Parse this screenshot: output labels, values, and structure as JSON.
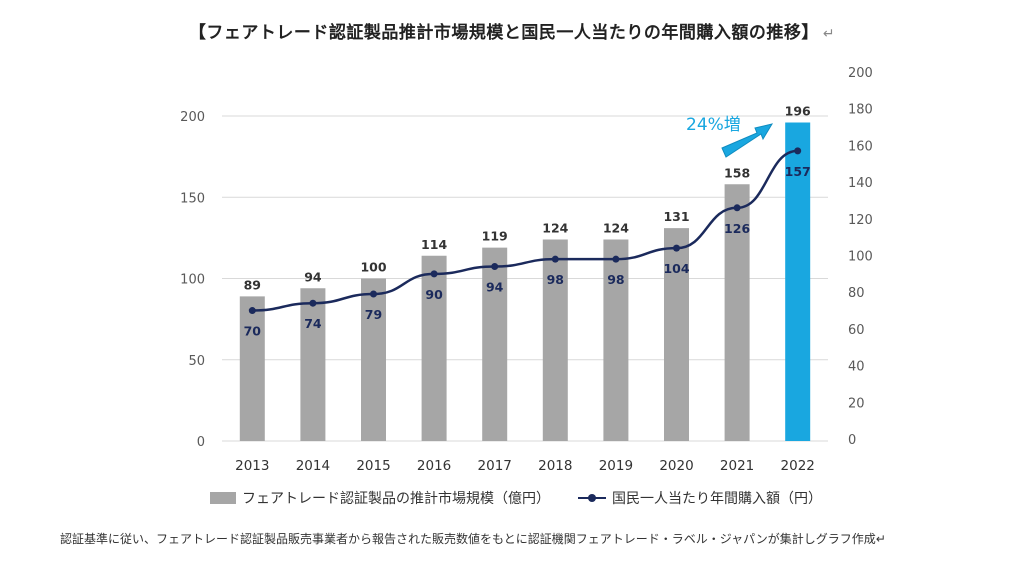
{
  "title": "【フェアトレード認証製品推計市場規模と国民一人当たりの年間購入額の推移】",
  "title_mark": "↵",
  "footnote": "認証基準に従い、フェアトレード認証製品販売事業者から報告された販売数値をもとに認証機関フェアトレード・ラベル・ジャパンが集計しグラフ作成↵",
  "annotation": {
    "text": "24%増",
    "color": "#19a7e0"
  },
  "legend": {
    "bars": "フェアトレード認証製品の推計市場規模（億円）",
    "line": "国民一人当たり年間購入額（円）"
  },
  "chart_data": {
    "type": "bar",
    "categories": [
      "2013",
      "2014",
      "2015",
      "2016",
      "2017",
      "2018",
      "2019",
      "2020",
      "2021",
      "2022"
    ],
    "series": [
      {
        "name": "フェアトレード認証製品の推計市場規模（億円）",
        "type": "bar",
        "axis": "left",
        "values": [
          89,
          94,
          100,
          114,
          119,
          124,
          124,
          131,
          158,
          196
        ],
        "color": "#a6a6a6",
        "highlight_color": "#19a7e0",
        "highlight_index": 9
      },
      {
        "name": "国民一人当たり年間購入額（円）",
        "type": "line",
        "axis": "right",
        "values": [
          70,
          74,
          79,
          90,
          94,
          98,
          98,
          104,
          126,
          157
        ],
        "color": "#1b2a5c"
      }
    ],
    "y_left": {
      "min": 0,
      "max": 200,
      "ticks": [
        0,
        50,
        100,
        150,
        200
      ]
    },
    "y_right": {
      "min": 0,
      "max": 200,
      "ticks": [
        0,
        20,
        40,
        60,
        80,
        100,
        120,
        140,
        160,
        180,
        200
      ]
    },
    "grid": true,
    "legend_position": "bottom"
  }
}
